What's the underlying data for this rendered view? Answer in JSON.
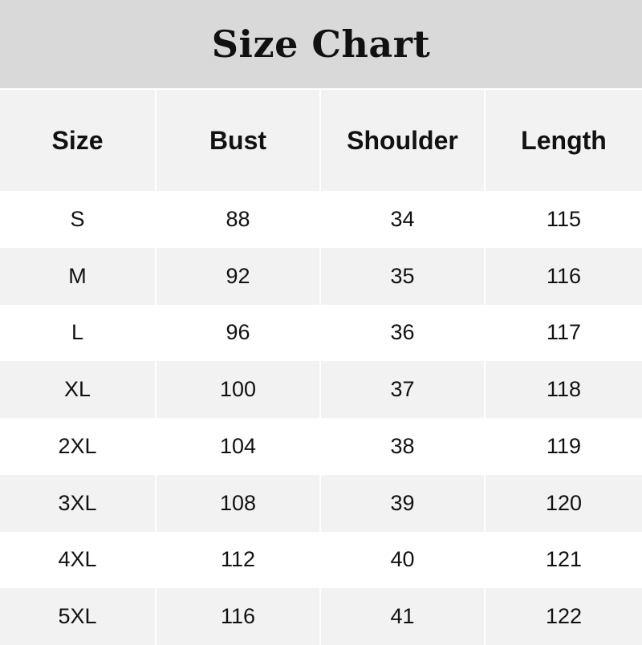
{
  "title": "Size Chart",
  "columns": [
    "Size",
    "Bust",
    "Shoulder",
    "Length"
  ],
  "rows": [
    [
      "S",
      "88",
      "34",
      "115"
    ],
    [
      "M",
      "92",
      "35",
      "116"
    ],
    [
      "L",
      "96",
      "36",
      "117"
    ],
    [
      "XL",
      "100",
      "37",
      "118"
    ],
    [
      "2XL",
      "104",
      "38",
      "119"
    ],
    [
      "3XL",
      "108",
      "39",
      "120"
    ],
    [
      "4XL",
      "112",
      "40",
      "121"
    ],
    [
      "5XL",
      "116",
      "41",
      "122"
    ]
  ],
  "colors": {
    "title_bg": "#d9d9d9",
    "header_bg": "#f2f2f2",
    "stripe_bg": "#f2f2f2",
    "text": "#111111"
  }
}
